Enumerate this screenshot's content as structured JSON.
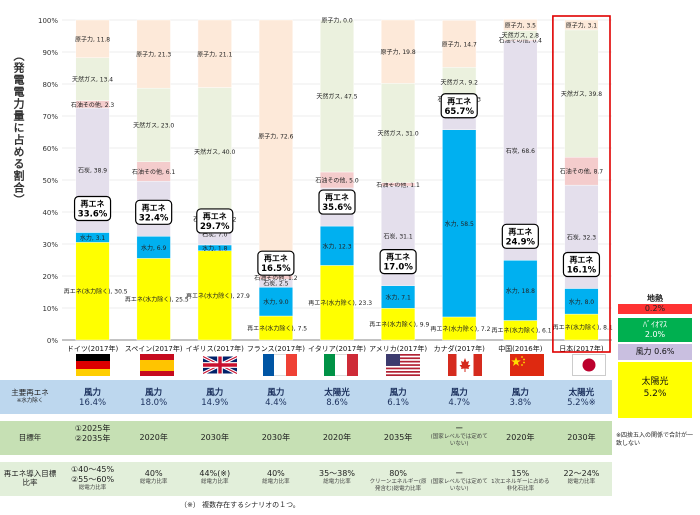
{
  "y_axis_title": "（発電電力量に占める割合）",
  "chart_data": {
    "type": "bar",
    "stacked": true,
    "ylim": [
      0,
      100
    ],
    "y_ticks": [
      "0%",
      "10%",
      "20%",
      "30%",
      "40%",
      "50%",
      "60%",
      "70%",
      "80%",
      "90%",
      "100%"
    ],
    "categories": [
      "ドイツ(2017年)",
      "スペイン(2017年)",
      "イギリス(2017年)",
      "フランス(2017年)",
      "イタリア(2017年)",
      "アメリカ(2017年)",
      "カナダ(2017年)",
      "中国(2016年)",
      "日本(2017年)"
    ],
    "series": [
      {
        "key": "renew",
        "color": "#ffff00",
        "values": [
          30.5,
          25.5,
          27.9,
          7.5,
          23.3,
          9.9,
          7.2,
          6.1,
          8.1
        ],
        "labels": [
          "再エネ(水力除く), 30.5",
          "再エネ(水力除く), 25.5",
          "再エネ(水力除く), 27.9",
          "再エネ(水力除く), 7.5",
          "再エネ(水力除く), 23.3",
          "再エネ(水力除く), 9.9",
          "再エネ(水力除く), 7.2",
          "再エネ(水力除く), 6.1",
          "再エネ(水力除く), 8.1"
        ]
      },
      {
        "key": "hydro",
        "color": "#00b0f0",
        "values": [
          3.1,
          6.9,
          1.8,
          9.0,
          12.3,
          7.1,
          58.5,
          18.8,
          8.0
        ],
        "labels": [
          "水力, 3.1",
          "水力, 6.9",
          "水力, 1.8",
          "水力, 9.0",
          "水力, 12.3",
          "水力, 7.1",
          "水力, 58.5",
          "水力, 18.8",
          "水力, 8.0"
        ]
      },
      {
        "key": "coal",
        "color": "#e4dfec",
        "values": [
          38.9,
          17.2,
          7.0,
          2.5,
          11.9,
          31.1,
          9.0,
          68.6,
          32.3
        ],
        "labels": [
          "石炭, 38.9",
          "石炭, 17.2",
          "石炭, 7.0",
          "石炭, 2.5",
          "石炭, 11.9",
          "石炭, 31.1",
          "石炭, 9.0",
          "石炭, 68.6",
          "石炭, 32.3"
        ]
      },
      {
        "key": "oil",
        "color": "#f4cccc",
        "values": [
          2.3,
          6.1,
          2.2,
          1.2,
          5.0,
          1.1,
          1.3,
          0.4,
          8.7
        ],
        "labels": [
          "石油その他, 2.3",
          "石油その他, 6.1",
          "石油その他, 2.2",
          "石油その他, 1.2",
          "石油その他, 5.0",
          "石油その他, 1.1",
          "石油その他, 1.3",
          "石油その他, 0.4",
          "石油その他, 8.7"
        ]
      },
      {
        "key": "gas",
        "color": "#ebf1de",
        "values": [
          13.4,
          23.0,
          40.0,
          7.2,
          47.5,
          31.0,
          9.2,
          2.8,
          39.8
        ],
        "labels": [
          "天然ガス, 13.4",
          "天然ガス, 23.0",
          "天然ガス, 40.0",
          "天然ガス, 7.2",
          "天然ガス, 47.5",
          "天然ガス, 31.0",
          "天然ガス, 9.2",
          "天然ガス, 2.8",
          "天然ガス, 39.8"
        ]
      },
      {
        "key": "nuclear",
        "color": "#fde9d9",
        "values": [
          11.8,
          21.3,
          21.1,
          72.6,
          0.0,
          19.8,
          14.7,
          3.5,
          3.1
        ],
        "labels": [
          "原子力, 11.8",
          "原子力, 21.3",
          "原子力, 21.1",
          "原子力, 72.6",
          "原子力, 0.0",
          "原子力, 19.8",
          "原子力, 14.7",
          "原子力, 3.5",
          "原子力, 3.1"
        ]
      }
    ],
    "renew_boxes": [
      {
        "line1": "再エネ",
        "line2": "33.6%"
      },
      {
        "line1": "再エネ",
        "line2": "32.4%"
      },
      {
        "line1": "再エネ",
        "line2": "29.7%"
      },
      {
        "line1": "再エネ",
        "line2": "16.5%"
      },
      {
        "line1": "再エネ",
        "line2": "35.6%"
      },
      {
        "line1": "再エネ",
        "line2": "17.0%"
      },
      {
        "line1": "再エネ",
        "line2": "65.7%"
      },
      {
        "line1": "再エネ",
        "line2": "24.9%"
      },
      {
        "line1": "再エネ",
        "line2": "16.1%"
      }
    ],
    "highlight_index": 8,
    "highlight_color": "#e00000"
  },
  "table": {
    "row1_label": "主要再エネ",
    "row1_sublabel": "※水力除く",
    "row2_label": "目標年",
    "row3_label": "再エネ導入目標比率",
    "row1": [
      {
        "main": "風力",
        "pct": "16.4%"
      },
      {
        "main": "風力",
        "pct": "18.0%"
      },
      {
        "main": "風力",
        "pct": "14.9%"
      },
      {
        "main": "風力",
        "pct": "4.4%"
      },
      {
        "main": "太陽光",
        "pct": "8.6%"
      },
      {
        "main": "風力",
        "pct": "6.1%"
      },
      {
        "main": "風力",
        "pct": "4.7%"
      },
      {
        "main": "風力",
        "pct": "3.8%"
      },
      {
        "main": "太陽光",
        "pct": "5.2%※"
      }
    ],
    "row2": [
      {
        "a": "①2025年",
        "b": "②2035年"
      },
      {
        "a": "2020年",
        "b": ""
      },
      {
        "a": "2030年",
        "b": ""
      },
      {
        "a": "2030年",
        "b": ""
      },
      {
        "a": "2020年",
        "b": ""
      },
      {
        "a": "2035年",
        "b": ""
      },
      {
        "a": "ー",
        "b": "(国家レベルでは定めていない)"
      },
      {
        "a": "2020年",
        "b": ""
      },
      {
        "a": "2030年",
        "b": ""
      }
    ],
    "row3": [
      {
        "a": "①40～45%",
        "b": "②55～60%",
        "c": "総電力比率"
      },
      {
        "a": "40%",
        "b": "",
        "c": "総電力比率"
      },
      {
        "a": "44%(※)",
        "b": "",
        "c": "総電力比率"
      },
      {
        "a": "40%",
        "b": "",
        "c": "総電力比率"
      },
      {
        "a": "35～38%",
        "b": "",
        "c": "総電力比率"
      },
      {
        "a": "80%",
        "b": "",
        "c": "クリーンエネルギー(原発含む)総電力比率"
      },
      {
        "a": "ー",
        "b": "",
        "c": "(国家レベルでは定めていない)"
      },
      {
        "a": "15%",
        "b": "",
        "c": "1次エネルギーに占める非化石比率"
      },
      {
        "a": "22～24%",
        "b": "",
        "c": "総電力比率"
      }
    ],
    "footnote": "（※） 複数存在するシナリオの１つ。"
  },
  "legend": [
    {
      "label": "地熱",
      "value": "0.2%",
      "color": "#ff3333"
    },
    {
      "label": "ﾊﾞｲｵﾏｽ",
      "value": "2.0%",
      "color": "#00b050"
    },
    {
      "label": "風力",
      "value": "0.6%",
      "color": "#c9bfe0"
    },
    {
      "label": "太陽光",
      "value": "5.2%",
      "color": "#ffff00"
    }
  ],
  "legend_note": "※四捨五入の関係で合計が一致しない"
}
